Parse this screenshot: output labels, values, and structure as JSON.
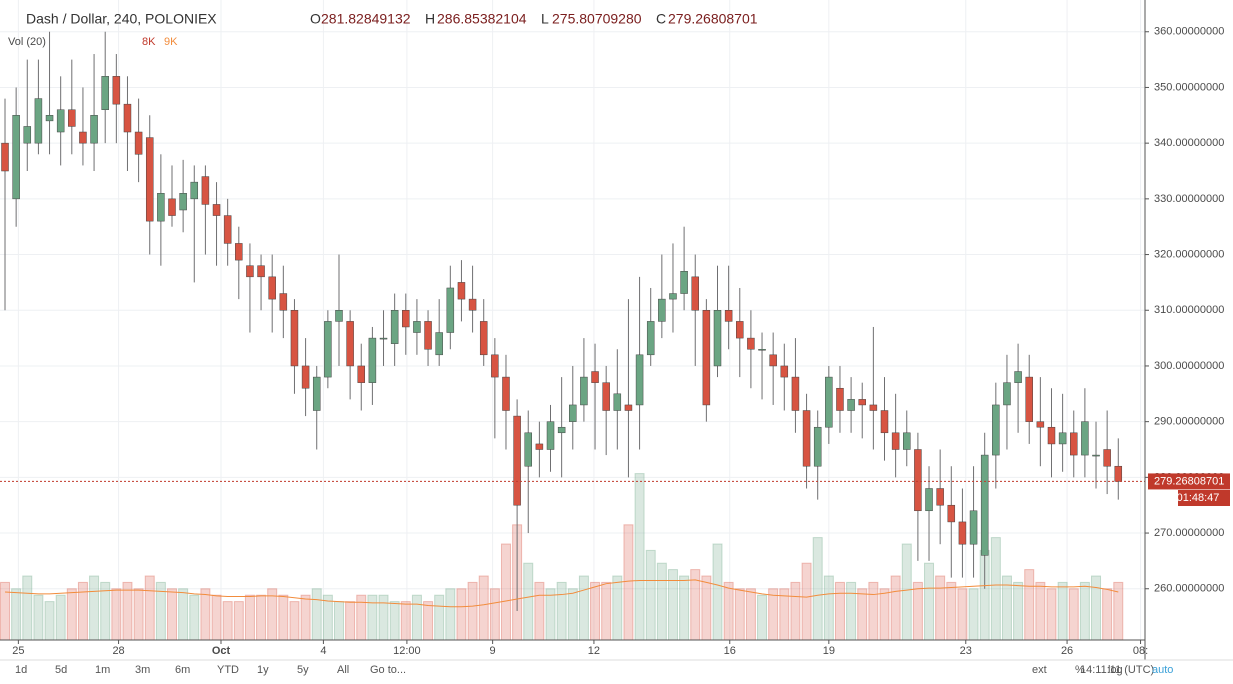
{
  "chart_data": {
    "type": "candlestick",
    "title": "Dash / Dollar, 240, POLONIEX",
    "ohlc_legend": {
      "O": "281.82849132",
      "H": "286.85382104",
      "L": "275.80709280",
      "C": "279.26808701"
    },
    "volume_title": "Vol (20)",
    "volume_legend": [
      "8K",
      "9K"
    ],
    "last_price": 279.26808701,
    "countdown": "01:48:47",
    "toolbar": [
      "1d",
      "5d",
      "1m",
      "3m",
      "6m",
      "YTD",
      "1y",
      "5y",
      "All",
      "Go to..."
    ],
    "clock": "14:11:11 (UTC)",
    "options": [
      "ext",
      "%",
      "log",
      "auto"
    ],
    "up_color": "#6ba583",
    "down_color": "#d75442",
    "wick_color": "#6f6f71",
    "ma_color": "#f28c3c",
    "last_color": "#c0392b",
    "open": [
      340,
      330,
      340,
      340,
      344,
      342,
      346,
      342,
      340,
      346,
      352,
      347,
      342,
      341,
      326,
      330,
      328,
      330,
      334,
      329,
      327,
      322,
      318,
      318,
      316,
      313,
      310,
      300,
      292,
      298,
      308,
      308,
      300,
      297,
      305,
      304,
      310,
      306,
      308,
      302,
      306,
      315,
      312,
      308,
      302,
      298,
      291,
      282,
      286,
      285,
      288,
      290,
      293,
      299,
      297,
      292,
      293,
      293,
      302,
      308,
      312,
      313,
      316,
      310,
      300,
      310,
      308,
      305,
      303,
      302,
      300,
      298,
      292,
      282,
      289,
      296,
      292,
      294,
      293,
      292,
      288,
      285,
      285,
      274,
      278,
      275,
      272,
      268,
      266,
      284,
      293,
      297,
      298,
      290,
      289,
      286,
      288,
      284,
      284,
      285,
      282
    ],
    "close": [
      335,
      345,
      343,
      348,
      345,
      346,
      343,
      340,
      345,
      352,
      347,
      342,
      338,
      326,
      331,
      327,
      331,
      333,
      329,
      327,
      322,
      319,
      316,
      316,
      312,
      310,
      300,
      296,
      298,
      308,
      310,
      300,
      297,
      305,
      305,
      310,
      307,
      308,
      303,
      306,
      314,
      312,
      310,
      302,
      298,
      292,
      275,
      288,
      285,
      290,
      289,
      293,
      298,
      297,
      292,
      295,
      292,
      302,
      308,
      312,
      313,
      317,
      310,
      293,
      310,
      308,
      305,
      303,
      303,
      300,
      298,
      292,
      282,
      289,
      298,
      292,
      294,
      293,
      292,
      288,
      285,
      288,
      274,
      278,
      275,
      272,
      268,
      274,
      284,
      293,
      297,
      299,
      290,
      289,
      286,
      288,
      284,
      290,
      284,
      282,
      279.27
    ],
    "high": [
      348,
      350,
      355,
      355,
      360,
      352,
      355,
      350,
      356,
      360,
      356,
      352,
      348,
      345,
      338,
      336,
      337,
      336,
      336,
      333,
      330,
      325,
      322,
      320,
      320,
      318,
      312,
      305,
      300,
      310,
      320,
      310,
      304,
      307,
      310,
      313,
      313,
      312,
      310,
      312,
      318,
      319,
      318,
      312,
      305,
      302,
      294,
      292,
      290,
      293,
      298,
      300,
      305,
      304,
      300,
      303,
      312,
      316,
      314,
      320,
      322,
      325,
      320,
      312,
      318,
      318,
      314,
      310,
      306,
      306,
      304,
      305,
      295,
      292,
      300,
      300,
      298,
      297,
      307,
      298,
      295,
      292,
      288,
      282,
      285,
      282,
      278,
      282,
      288,
      297,
      302,
      304,
      302,
      298,
      296,
      295,
      292,
      296,
      290,
      292,
      287
    ],
    "low": [
      310,
      325,
      335,
      338,
      338,
      336,
      338,
      336,
      335,
      340,
      340,
      335,
      333,
      320,
      318,
      325,
      324,
      315,
      320,
      318,
      318,
      312,
      306,
      310,
      306,
      305,
      295,
      291,
      285,
      296,
      300,
      294,
      292,
      293,
      300,
      300,
      302,
      302,
      300,
      300,
      303,
      308,
      306,
      300,
      287,
      285,
      256,
      270,
      280,
      281,
      280,
      285,
      290,
      285,
      284,
      285,
      280,
      285,
      300,
      305,
      306,
      310,
      300,
      290,
      298,
      303,
      298,
      296,
      294,
      293,
      292,
      288,
      278,
      276,
      286,
      288,
      288,
      287,
      285,
      283,
      280,
      282,
      265,
      265,
      268,
      262,
      262,
      262,
      260,
      278,
      285,
      288,
      286,
      282,
      280,
      281,
      280,
      280,
      278,
      277,
      276
    ],
    "volume": [
      9,
      8,
      10,
      7,
      6,
      7,
      8,
      9,
      10,
      9,
      8,
      9,
      8,
      10,
      9,
      8,
      8,
      7,
      8,
      7,
      6,
      6,
      7,
      7,
      8,
      7,
      6,
      7,
      8,
      7,
      6,
      6,
      7,
      7,
      7,
      6,
      6,
      7,
      6,
      7,
      8,
      8,
      9,
      10,
      8,
      15,
      18,
      12,
      9,
      8,
      9,
      8,
      10,
      9,
      9,
      10,
      18,
      26,
      14,
      12,
      11,
      10,
      11,
      10,
      15,
      9,
      8,
      8,
      7,
      8,
      8,
      9,
      12,
      16,
      10,
      9,
      9,
      8,
      9,
      8,
      10,
      15,
      9,
      12,
      10,
      9,
      8,
      8,
      14,
      16,
      10,
      9,
      11,
      9,
      8,
      9,
      8,
      9,
      10,
      8,
      9
    ],
    "volume_ma": [
      7.5,
      7.4,
      7.3,
      7.2,
      7.2,
      7.3,
      7.4,
      7.5,
      7.6,
      7.7,
      7.8,
      7.8,
      7.8,
      7.7,
      7.6,
      7.5,
      7.4,
      7.2,
      7.1,
      6.9,
      6.8,
      6.8,
      6.8,
      6.9,
      6.9,
      6.8,
      6.6,
      6.4,
      6.3,
      6.1,
      6.0,
      5.9,
      5.9,
      5.8,
      5.8,
      5.7,
      5.6,
      5.6,
      5.4,
      5.3,
      5.2,
      5.2,
      5.3,
      5.5,
      5.8,
      6.1,
      6.4,
      6.7,
      7.0,
      7.0,
      7.1,
      7.3,
      7.8,
      8.3,
      8.8,
      9.0,
      9.2,
      9.3,
      9.3,
      9.3,
      9.3,
      9.3,
      9.4,
      9.0,
      8.6,
      8.1,
      7.8,
      7.5,
      7.2,
      7.0,
      6.9,
      6.8,
      6.7,
      7.0,
      7.2,
      7.3,
      7.3,
      7.2,
      7.1,
      7.3,
      7.6,
      7.8,
      8.0,
      8.1,
      8.1,
      8.2,
      8.3,
      8.4,
      8.5,
      8.6,
      8.6,
      8.5,
      8.4,
      8.4,
      8.3,
      8.3,
      8.3,
      8.4,
      8.2,
      7.9,
      7.5
    ],
    "vlim": [
      0,
      100
    ],
    "xlim": [
      -0.45,
      102.4
    ],
    "xticks": [
      {
        "value": 1.2,
        "label": "25"
      },
      {
        "value": 10.2,
        "label": "28"
      },
      {
        "value": 19.4,
        "label": "Oct"
      },
      {
        "value": 28.6,
        "label": "4"
      },
      {
        "value": 36.1,
        "label": "12:00"
      },
      {
        "value": 43.8,
        "label": "9"
      },
      {
        "value": 52.9,
        "label": "12"
      },
      {
        "value": 65.1,
        "label": "16"
      },
      {
        "value": 74.0,
        "label": "19"
      },
      {
        "value": 86.3,
        "label": "23"
      },
      {
        "value": 95.4,
        "label": "26"
      },
      {
        "value": 102,
        "label": "08:"
      }
    ],
    "ylim": [
      250.8,
      365.7
    ],
    "yticks": [
      {
        "value": 260,
        "label": "260.00000000"
      },
      {
        "value": 270,
        "label": "270.00000000"
      },
      {
        "value": 280,
        "label": "280.00000000"
      },
      {
        "value": 290,
        "label": "290.00000000"
      },
      {
        "value": 300,
        "label": "300.00000000"
      },
      {
        "value": 310,
        "label": "310.00000000"
      },
      {
        "value": 320,
        "label": "320.00000000"
      },
      {
        "value": 330,
        "label": "330.00000000"
      },
      {
        "value": 340,
        "label": "340.00000000"
      },
      {
        "value": 350,
        "label": "350.00000000"
      },
      {
        "value": 360,
        "label": "360.00000000"
      }
    ],
    "grid": true
  }
}
